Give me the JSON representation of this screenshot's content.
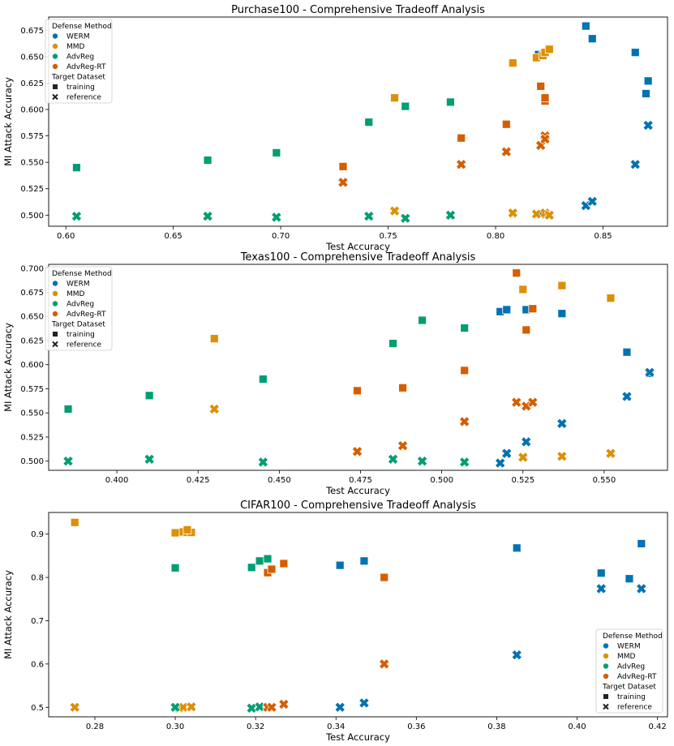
{
  "colors": {
    "WERM": "#0173b2",
    "MMD": "#de8f05",
    "AdvReg": "#029e73",
    "AdvReg-RT": "#d55e00"
  },
  "chart_data": [
    {
      "type": "scatter",
      "title": "Purchase100 - Comprehensive Tradeoff Analysis",
      "xlabel": "Test Accuracy",
      "ylabel": "MI Attack Accuracy",
      "xlim": [
        0.592,
        0.88
      ],
      "ylim": [
        0.4895,
        0.6875
      ],
      "xticks": [
        0.6,
        0.65,
        0.7,
        0.75,
        0.8,
        0.85
      ],
      "yticks": [
        0.5,
        0.525,
        0.55,
        0.575,
        0.6,
        0.625,
        0.65,
        0.675
      ],
      "xtick_labels": [
        "0.60",
        "0.65",
        "0.70",
        "0.75",
        "0.80",
        "0.85"
      ],
      "ytick_labels": [
        "0.500",
        "0.525",
        "0.550",
        "0.575",
        "0.600",
        "0.625",
        "0.650",
        "0.675"
      ],
      "legend_position": "top-left",
      "series": [
        {
          "name": "WERM",
          "dataset": "training",
          "x": [
            0.842,
            0.845,
            0.82,
            0.865,
            0.87,
            0.871
          ],
          "y": [
            0.679,
            0.667,
            0.652,
            0.654,
            0.615,
            0.627
          ]
        },
        {
          "name": "WERM",
          "dataset": "reference",
          "x": [
            0.842,
            0.845,
            0.821,
            0.865,
            0.871
          ],
          "y": [
            0.509,
            0.513,
            0.501,
            0.548,
            0.585
          ]
        },
        {
          "name": "MMD",
          "dataset": "training",
          "x": [
            0.753,
            0.808,
            0.819,
            0.822,
            0.823,
            0.825
          ],
          "y": [
            0.611,
            0.644,
            0.649,
            0.651,
            0.654,
            0.657
          ]
        },
        {
          "name": "MMD",
          "dataset": "reference",
          "x": [
            0.753,
            0.808,
            0.819,
            0.823,
            0.825
          ],
          "y": [
            0.504,
            0.502,
            0.501,
            0.502,
            0.5
          ]
        },
        {
          "name": "AdvReg",
          "dataset": "training",
          "x": [
            0.605,
            0.666,
            0.698,
            0.741,
            0.758,
            0.779
          ],
          "y": [
            0.545,
            0.552,
            0.559,
            0.588,
            0.603,
            0.607
          ]
        },
        {
          "name": "AdvReg",
          "dataset": "reference",
          "x": [
            0.605,
            0.666,
            0.698,
            0.741,
            0.758,
            0.779
          ],
          "y": [
            0.499,
            0.499,
            0.498,
            0.499,
            0.497,
            0.5
          ]
        },
        {
          "name": "AdvReg-RT",
          "dataset": "training",
          "x": [
            0.729,
            0.784,
            0.805,
            0.821,
            0.823,
            0.823,
            0.823
          ],
          "y": [
            0.546,
            0.573,
            0.586,
            0.622,
            0.608,
            0.611,
            0.573
          ]
        },
        {
          "name": "AdvReg-RT",
          "dataset": "reference",
          "x": [
            0.729,
            0.784,
            0.805,
            0.821,
            0.823,
            0.823
          ],
          "y": [
            0.531,
            0.548,
            0.56,
            0.566,
            0.575,
            0.572
          ]
        }
      ]
    },
    {
      "type": "scatter",
      "title": "Texas100 - Comprehensive Tradeoff Analysis",
      "xlabel": "Test Accuracy",
      "ylabel": "MI Attack Accuracy",
      "xlim": [
        0.379,
        0.5695
      ],
      "ylim": [
        0.4905,
        0.704
      ],
      "xticks": [
        0.4,
        0.425,
        0.45,
        0.475,
        0.5,
        0.525,
        0.55
      ],
      "yticks": [
        0.5,
        0.525,
        0.55,
        0.575,
        0.6,
        0.625,
        0.65,
        0.675,
        0.7
      ],
      "xtick_labels": [
        "0.400",
        "0.425",
        "0.450",
        "0.475",
        "0.500",
        "0.525",
        "0.550"
      ],
      "ytick_labels": [
        "0.500",
        "0.525",
        "0.550",
        "0.575",
        "0.600",
        "0.625",
        "0.650",
        "0.675",
        "0.700"
      ],
      "legend_position": "top-left",
      "series": [
        {
          "name": "WERM",
          "dataset": "training",
          "x": [
            0.518,
            0.52,
            0.526,
            0.537,
            0.557,
            0.564
          ],
          "y": [
            0.655,
            0.657,
            0.657,
            0.653,
            0.613,
            0.591
          ]
        },
        {
          "name": "WERM",
          "dataset": "reference",
          "x": [
            0.518,
            0.52,
            0.526,
            0.537,
            0.557,
            0.564
          ],
          "y": [
            0.498,
            0.508,
            0.52,
            0.539,
            0.567,
            0.592
          ]
        },
        {
          "name": "MMD",
          "dataset": "training",
          "x": [
            0.43,
            0.525,
            0.537,
            0.552
          ],
          "y": [
            0.627,
            0.678,
            0.682,
            0.669
          ]
        },
        {
          "name": "MMD",
          "dataset": "reference",
          "x": [
            0.43,
            0.525,
            0.537,
            0.552
          ],
          "y": [
            0.554,
            0.504,
            0.505,
            0.508
          ]
        },
        {
          "name": "AdvReg",
          "dataset": "training",
          "x": [
            0.385,
            0.41,
            0.445,
            0.485,
            0.494,
            0.507
          ],
          "y": [
            0.554,
            0.568,
            0.585,
            0.622,
            0.646,
            0.638
          ]
        },
        {
          "name": "AdvReg",
          "dataset": "reference",
          "x": [
            0.385,
            0.41,
            0.445,
            0.485,
            0.494,
            0.507
          ],
          "y": [
            0.5,
            0.502,
            0.499,
            0.502,
            0.5,
            0.499
          ]
        },
        {
          "name": "AdvReg-RT",
          "dataset": "training",
          "x": [
            0.474,
            0.488,
            0.507,
            0.523,
            0.526,
            0.528
          ],
          "y": [
            0.573,
            0.576,
            0.594,
            0.695,
            0.636,
            0.658
          ]
        },
        {
          "name": "AdvReg-RT",
          "dataset": "reference",
          "x": [
            0.474,
            0.488,
            0.507,
            0.523,
            0.526,
            0.528
          ],
          "y": [
            0.51,
            0.516,
            0.541,
            0.561,
            0.557,
            0.561
          ]
        }
      ]
    },
    {
      "type": "scatter",
      "title": "CIFAR100 - Comprehensive Tradeoff Analysis",
      "xlabel": "Test Accuracy",
      "ylabel": "MI Attack Accuracy",
      "xlim": [
        0.2685,
        0.4225
      ],
      "ylim": [
        0.478,
        0.95
      ],
      "xticks": [
        0.28,
        0.3,
        0.32,
        0.34,
        0.36,
        0.38,
        0.4,
        0.42
      ],
      "yticks": [
        0.5,
        0.6,
        0.7,
        0.8,
        0.9
      ],
      "xtick_labels": [
        "0.28",
        "0.30",
        "0.32",
        "0.34",
        "0.36",
        "0.38",
        "0.40",
        "0.42"
      ],
      "ytick_labels": [
        "0.5",
        "0.6",
        "0.7",
        "0.8",
        "0.9"
      ],
      "legend_position": "bottom-right",
      "series": [
        {
          "name": "WERM",
          "dataset": "training",
          "x": [
            0.341,
            0.347,
            0.385,
            0.406,
            0.413,
            0.416
          ],
          "y": [
            0.828,
            0.838,
            0.868,
            0.81,
            0.797,
            0.878
          ]
        },
        {
          "name": "WERM",
          "dataset": "reference",
          "x": [
            0.341,
            0.347,
            0.385,
            0.406,
            0.416
          ],
          "y": [
            0.5,
            0.51,
            0.621,
            0.774,
            0.774
          ]
        },
        {
          "name": "MMD",
          "dataset": "training",
          "x": [
            0.275,
            0.3,
            0.302,
            0.303,
            0.304,
            0.303
          ],
          "y": [
            0.927,
            0.903,
            0.905,
            0.904,
            0.904,
            0.91
          ]
        },
        {
          "name": "MMD",
          "dataset": "reference",
          "x": [
            0.275,
            0.3,
            0.301,
            0.302,
            0.304
          ],
          "y": [
            0.5,
            0.5,
            0.498,
            0.5,
            0.501
          ]
        },
        {
          "name": "AdvReg",
          "dataset": "training",
          "x": [
            0.3,
            0.319,
            0.321,
            0.323
          ],
          "y": [
            0.822,
            0.823,
            0.838,
            0.843
          ]
        },
        {
          "name": "AdvReg",
          "dataset": "reference",
          "x": [
            0.3,
            0.319,
            0.321,
            0.323
          ],
          "y": [
            0.5,
            0.498,
            0.501,
            0.5
          ]
        },
        {
          "name": "AdvReg-RT",
          "dataset": "training",
          "x": [
            0.323,
            0.324,
            0.327,
            0.352
          ],
          "y": [
            0.811,
            0.819,
            0.832,
            0.8
          ]
        },
        {
          "name": "AdvReg-RT",
          "dataset": "reference",
          "x": [
            0.323,
            0.324,
            0.327,
            0.352
          ],
          "y": [
            0.5,
            0.5,
            0.507,
            0.6
          ]
        }
      ]
    }
  ],
  "legend": {
    "method_title": "Defense Method",
    "methods": [
      "WERM",
      "MMD",
      "AdvReg",
      "AdvReg-RT"
    ],
    "dataset_title": "Target Dataset",
    "datasets": [
      "training",
      "reference"
    ]
  }
}
